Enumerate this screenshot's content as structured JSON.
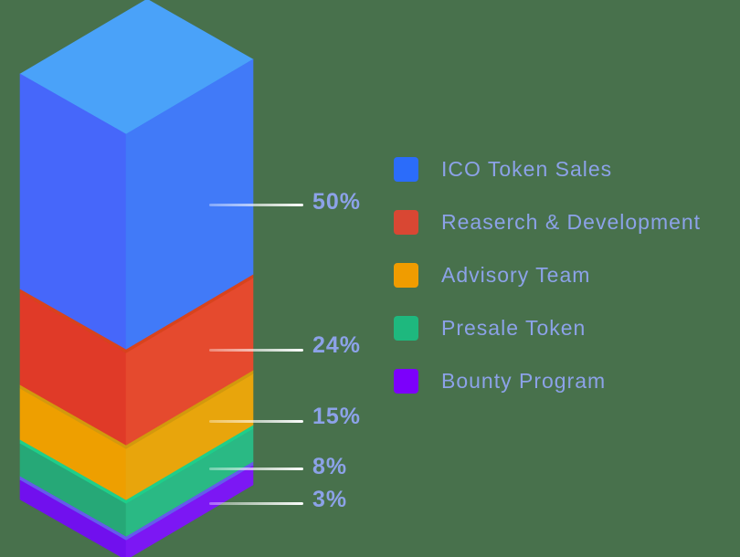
{
  "canvas": {
    "background": "#48714C"
  },
  "text_color": "#8CA2E8",
  "leader_line_color": "#FFFFFF",
  "chart_data": {
    "type": "bar",
    "subtype": "isometric-3d-stacked-column",
    "categories": [
      "ICO Token Sales",
      "Reaserch & Development",
      "Advisory Team",
      "Presale Token",
      "Bounty Program"
    ],
    "values": [
      50,
      24,
      15,
      8,
      3
    ],
    "value_labels": [
      "50%",
      "24%",
      "15%",
      "8%",
      "3%"
    ],
    "unit": "%",
    "legend_position": "right",
    "segments": [
      {
        "label": "ICO Token Sales",
        "value": 50,
        "value_label": "50%",
        "legend_color": "#2B6CFA",
        "faces": {
          "top": "#4AA2F9",
          "left": "#4667FA",
          "right": "#417AF8"
        }
      },
      {
        "label": "Reaserch & Development",
        "value": 24,
        "value_label": "24%",
        "legend_color": "#D94733",
        "faces": {
          "top": "#D8431D",
          "left": "#E03A28",
          "right": "#E54A2E"
        }
      },
      {
        "label": "Advisory Team",
        "value": 15,
        "value_label": "15%",
        "legend_color": "#F09C00",
        "faces": {
          "top": "#D2990D",
          "left": "#EE9F00",
          "right": "#E8A50C"
        }
      },
      {
        "label": "Presale Token",
        "value": 8,
        "value_label": "8%",
        "legend_color": "#1EB87E",
        "faces": {
          "top": "#1FCE8A",
          "left": "#26A877",
          "right": "#2AB984"
        }
      },
      {
        "label": "Bounty Program",
        "value": 3,
        "value_label": "3%",
        "legend_color": "#7C00FB",
        "faces": {
          "top": "#655AEC",
          "left": "#7110EE",
          "right": "#7C17F4"
        }
      }
    ]
  }
}
